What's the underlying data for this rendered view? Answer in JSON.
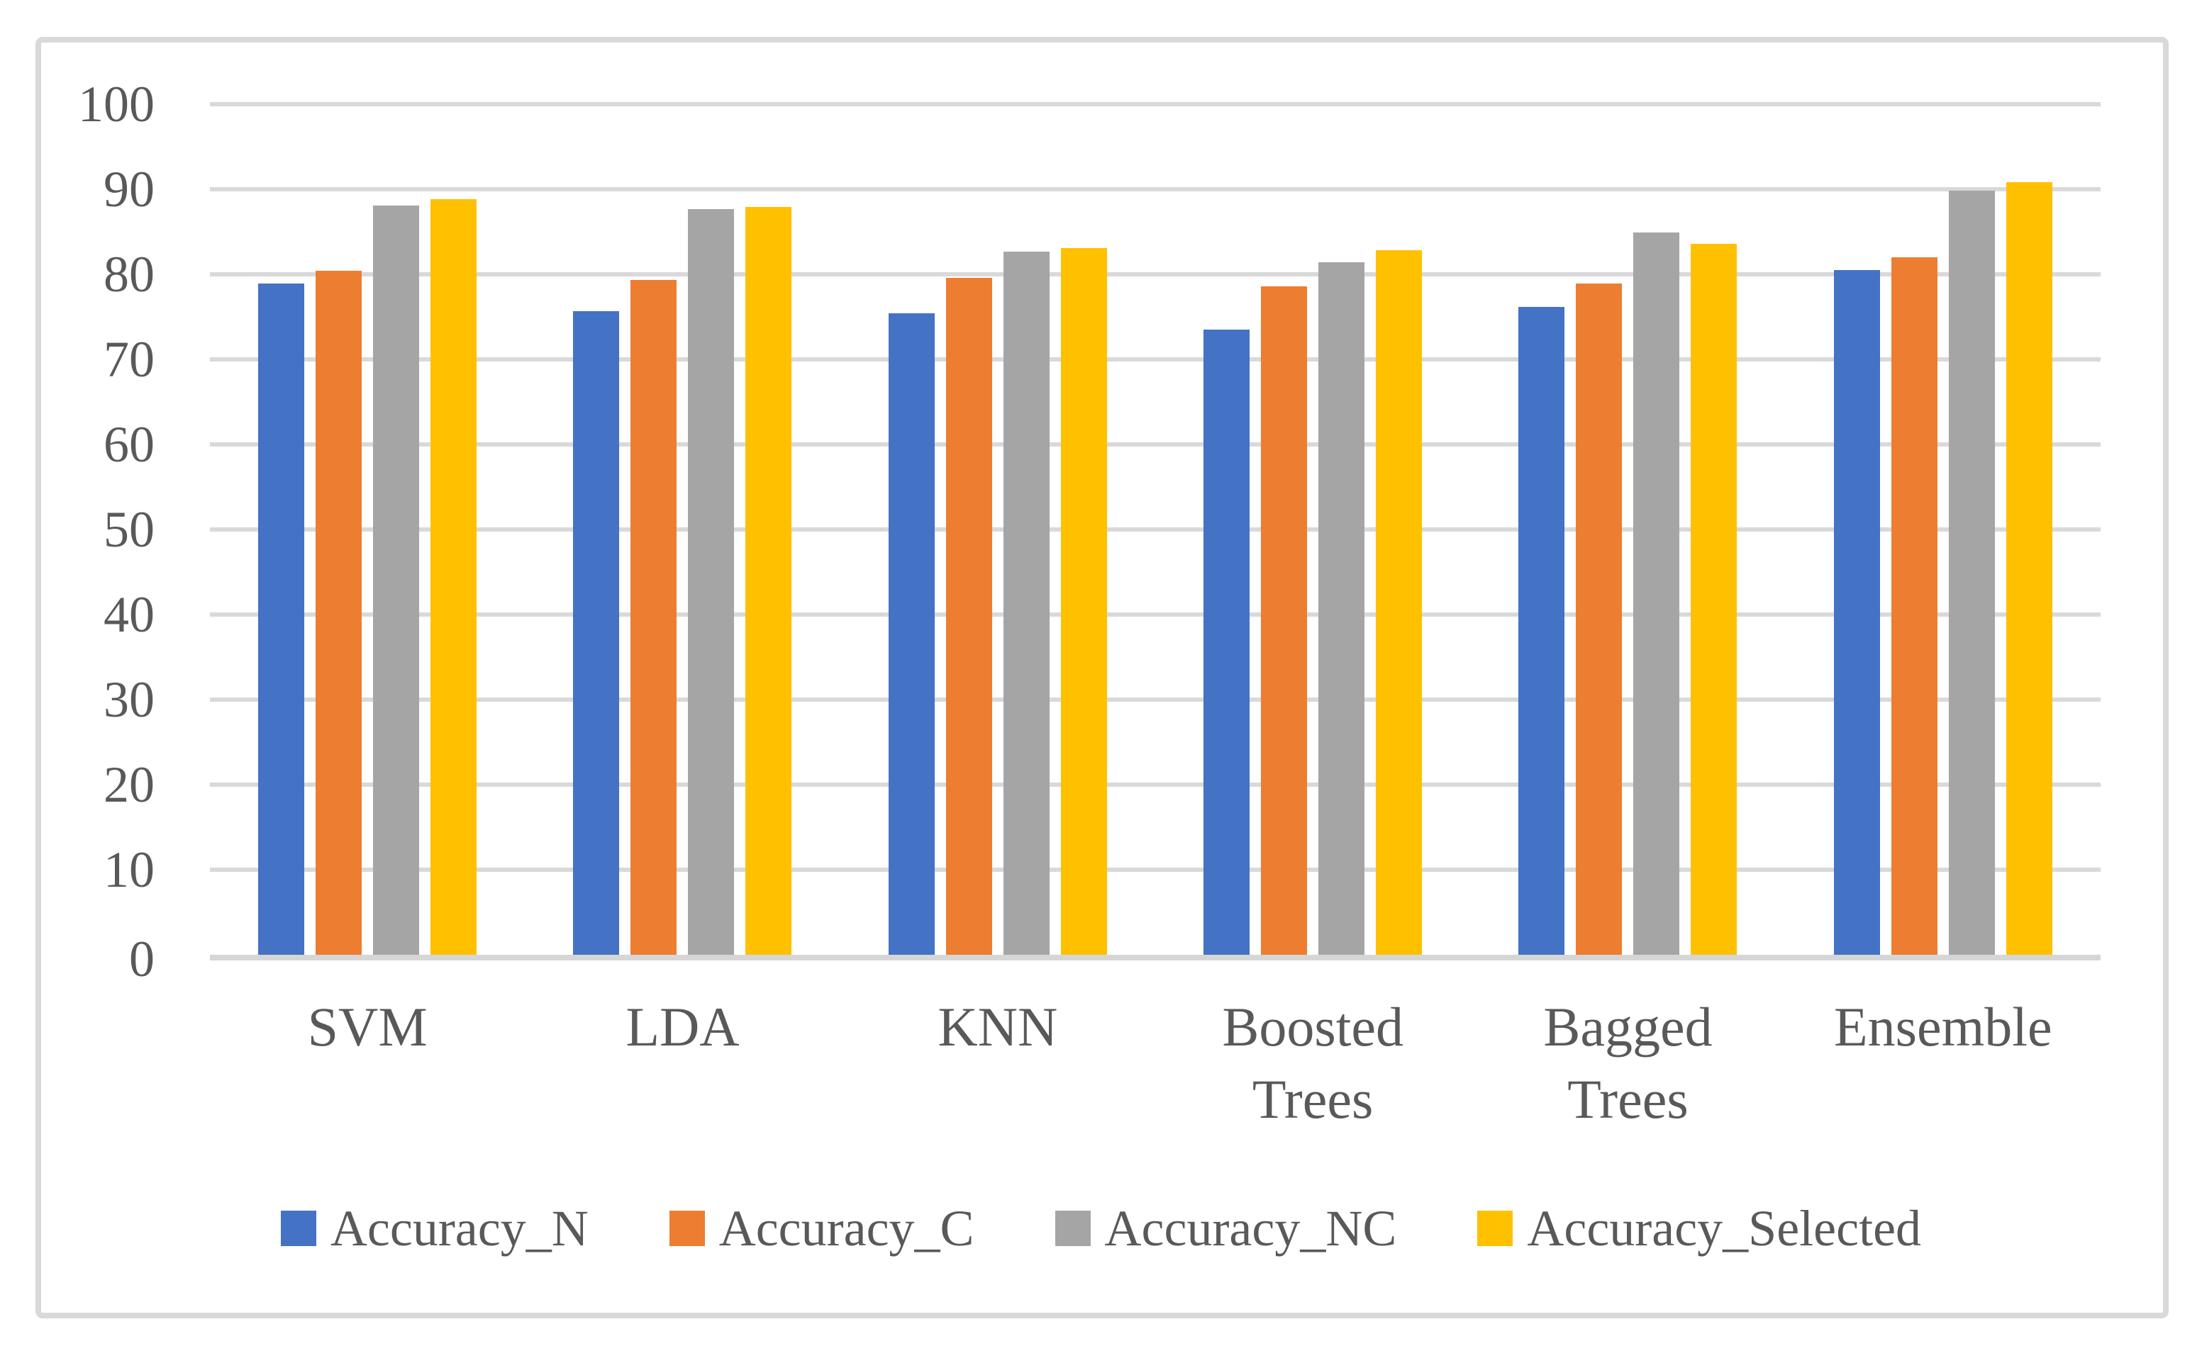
{
  "figure": {
    "background": "#FFFFFF",
    "border_color": "#D9D9D9",
    "text_color": "#595959"
  },
  "chart_data": {
    "type": "bar",
    "title": "",
    "xlabel": "",
    "ylabel": "",
    "categories": [
      "SVM",
      "LDA",
      "KNN",
      "Boosted Trees",
      "Bagged Trees",
      "Ensemble"
    ],
    "series": [
      {
        "name": "Accuracy_N",
        "color": "#4472C4",
        "values": [
          78.9,
          75.7,
          75.4,
          73.5,
          76.2,
          80.5
        ]
      },
      {
        "name": "Accuracy_C",
        "color": "#ED7D31",
        "values": [
          80.4,
          79.3,
          79.6,
          78.6,
          78.9,
          82.0
        ]
      },
      {
        "name": "Accuracy_NC",
        "color": "#A5A5A5",
        "values": [
          88.1,
          87.7,
          82.7,
          81.4,
          84.9,
          89.8
        ]
      },
      {
        "name": "Accuracy_Selected",
        "color": "#FFC000",
        "values": [
          88.8,
          87.9,
          83.1,
          82.8,
          83.6,
          90.8
        ]
      }
    ],
    "ylim": [
      0,
      100
    ],
    "yticks": [
      0,
      10,
      20,
      30,
      40,
      50,
      60,
      70,
      80,
      90,
      100
    ],
    "grid": true,
    "gridline_color": "#D9D9D9",
    "legend_position": "bottom"
  }
}
